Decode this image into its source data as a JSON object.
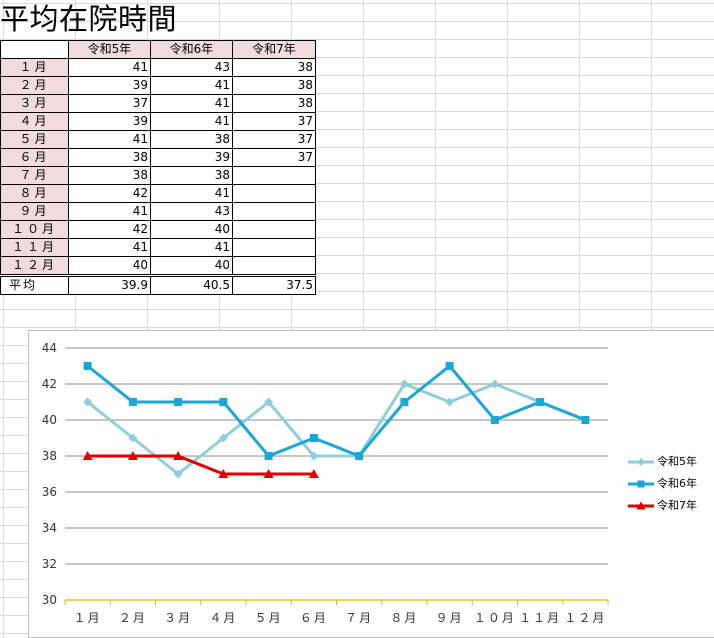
{
  "sheet": {
    "title": "平均在院時間",
    "headers": [
      "",
      "令和5年",
      "令和6年",
      "令和7年"
    ],
    "rows": [
      {
        "label": "１月",
        "v": [
          "41",
          "43",
          "38"
        ]
      },
      {
        "label": "２月",
        "v": [
          "39",
          "41",
          "38"
        ]
      },
      {
        "label": "３月",
        "v": [
          "37",
          "41",
          "38"
        ]
      },
      {
        "label": "４月",
        "v": [
          "39",
          "41",
          "37"
        ]
      },
      {
        "label": "５月",
        "v": [
          "41",
          "38",
          "37"
        ]
      },
      {
        "label": "６月",
        "v": [
          "38",
          "39",
          "37"
        ]
      },
      {
        "label": "７月",
        "v": [
          "38",
          "38",
          ""
        ]
      },
      {
        "label": "８月",
        "v": [
          "42",
          "41",
          ""
        ]
      },
      {
        "label": "９月",
        "v": [
          "41",
          "43",
          ""
        ]
      },
      {
        "label": "１０月",
        "v": [
          "42",
          "40",
          ""
        ]
      },
      {
        "label": "１１月",
        "v": [
          "41",
          "41",
          ""
        ]
      },
      {
        "label": "１２月",
        "v": [
          "40",
          "40",
          ""
        ]
      }
    ],
    "average": {
      "label": "平均",
      "v": [
        "39.9",
        "40.5",
        "37.5"
      ]
    }
  },
  "chart_data": {
    "type": "line",
    "categories": [
      "１月",
      "２月",
      "３月",
      "４月",
      "５月",
      "６月",
      "７月",
      "８月",
      "９月",
      "１０月",
      "１１月",
      "１２月"
    ],
    "series": [
      {
        "name": "令和5年",
        "values": [
          41,
          39,
          37,
          39,
          41,
          38,
          38,
          42,
          41,
          42,
          41,
          40
        ],
        "color": "#92cddc",
        "marker": "diamond"
      },
      {
        "name": "令和6年",
        "values": [
          43,
          41,
          41,
          41,
          38,
          39,
          38,
          41,
          43,
          40,
          41,
          40
        ],
        "color": "#18a8d8",
        "marker": "square"
      },
      {
        "name": "令和7年",
        "values": [
          38,
          38,
          38,
          37,
          37,
          37,
          null,
          null,
          null,
          null,
          null,
          null
        ],
        "color": "#e00000",
        "marker": "triangle"
      }
    ],
    "ylim": [
      30,
      44
    ],
    "yticks": [
      30,
      32,
      34,
      36,
      38,
      40,
      42,
      44
    ],
    "grid": true,
    "legend": "right",
    "title": "",
    "xlabel": "",
    "ylabel": ""
  }
}
